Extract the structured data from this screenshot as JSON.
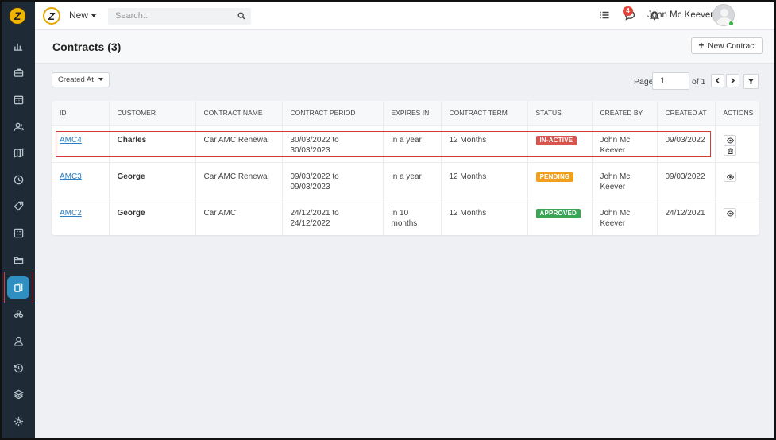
{
  "topbar": {
    "new_label": "New",
    "search_placeholder": "Search..",
    "notification_count": "4",
    "user_name": "John Mc Keever"
  },
  "sidebar": {
    "items": [
      {
        "name": "dashboard-icon"
      },
      {
        "name": "briefcase-icon"
      },
      {
        "name": "calendar-icon"
      },
      {
        "name": "users-icon"
      },
      {
        "name": "map-icon"
      },
      {
        "name": "clock-icon"
      },
      {
        "name": "tag-icon"
      },
      {
        "name": "grid-icon"
      },
      {
        "name": "folder-icon"
      },
      {
        "name": "contracts-icon",
        "active": true
      },
      {
        "name": "groups-icon"
      },
      {
        "name": "user-icon"
      },
      {
        "name": "history-icon"
      },
      {
        "name": "layers-icon"
      },
      {
        "name": "settings-icon"
      }
    ]
  },
  "page": {
    "title": "Contracts (3)",
    "new_contract_label": "New Contract"
  },
  "toolbar": {
    "sort_label": "Created At",
    "page_label": "Page",
    "page_value": "1",
    "page_of": "of 1"
  },
  "table": {
    "headers": [
      "ID",
      "CUSTOMER",
      "CONTRACT NAME",
      "CONTRACT PERIOD",
      "EXPIRES IN",
      "CONTRACT TERM",
      "STATUS",
      "CREATED BY",
      "CREATED AT",
      "ACTIONS"
    ],
    "rows": [
      {
        "id": "AMC4",
        "customer": "Charles",
        "contract_name": "Car AMC Renewal",
        "period": "30/03/2022 to 30/03/2023",
        "expires": "in a year",
        "term": "12 Months",
        "status": "IN-ACTIVE",
        "created_by": "John Mc Keever",
        "created_at": "09/03/2022"
      },
      {
        "id": "AMC3",
        "customer": "George",
        "contract_name": "Car AMC Renewal",
        "period": "09/03/2022 to 09/03/2023",
        "expires": "in a year",
        "term": "12 Months",
        "status": "PENDING",
        "created_by": "John Mc Keever",
        "created_at": "09/03/2022"
      },
      {
        "id": "AMC2",
        "customer": "George",
        "contract_name": "Car AMC",
        "period": "24/12/2021 to 24/12/2022",
        "expires": "in 10 months",
        "term": "12 Months",
        "status": "APPROVED",
        "created_by": "John Mc Keever",
        "created_at": "24/12/2021"
      }
    ]
  },
  "colors": {
    "sidebar_bg": "#1e2a36",
    "active_accent": "#2f8fc1",
    "status_inactive": "#d9534f",
    "status_pending": "#f0a01c",
    "status_approved": "#3aa655",
    "link": "#2f7fc1",
    "highlight": "#d9383a"
  }
}
